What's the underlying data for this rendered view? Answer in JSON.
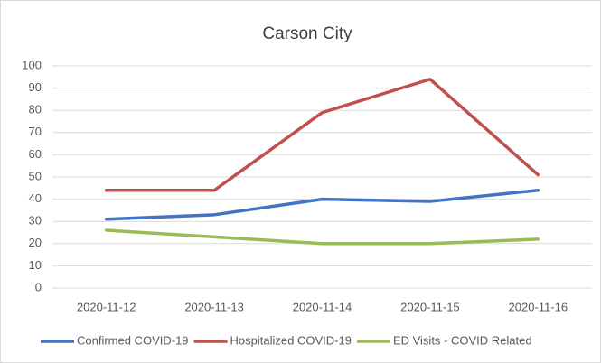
{
  "chart_data": {
    "type": "line",
    "title": "Carson City",
    "categories": [
      "2020-11-12",
      "2020-11-13",
      "2020-11-14",
      "2020-11-15",
      "2020-11-16"
    ],
    "series": [
      {
        "name": "Confirmed COVID-19",
        "color": "#4472c4",
        "values": [
          31,
          33,
          40,
          39,
          44
        ]
      },
      {
        "name": "Hospitalized COVID-19",
        "color": "#c0504d",
        "values": [
          44,
          44,
          79,
          94,
          51
        ]
      },
      {
        "name": "ED Visits - COVID Related",
        "color": "#9bbb59",
        "values": [
          26,
          23,
          20,
          20,
          22
        ]
      }
    ],
    "ylim": [
      0,
      100
    ],
    "yticks": [
      0,
      10,
      20,
      30,
      40,
      50,
      60,
      70,
      80,
      90,
      100
    ],
    "grid": true,
    "legend": "bottom"
  }
}
